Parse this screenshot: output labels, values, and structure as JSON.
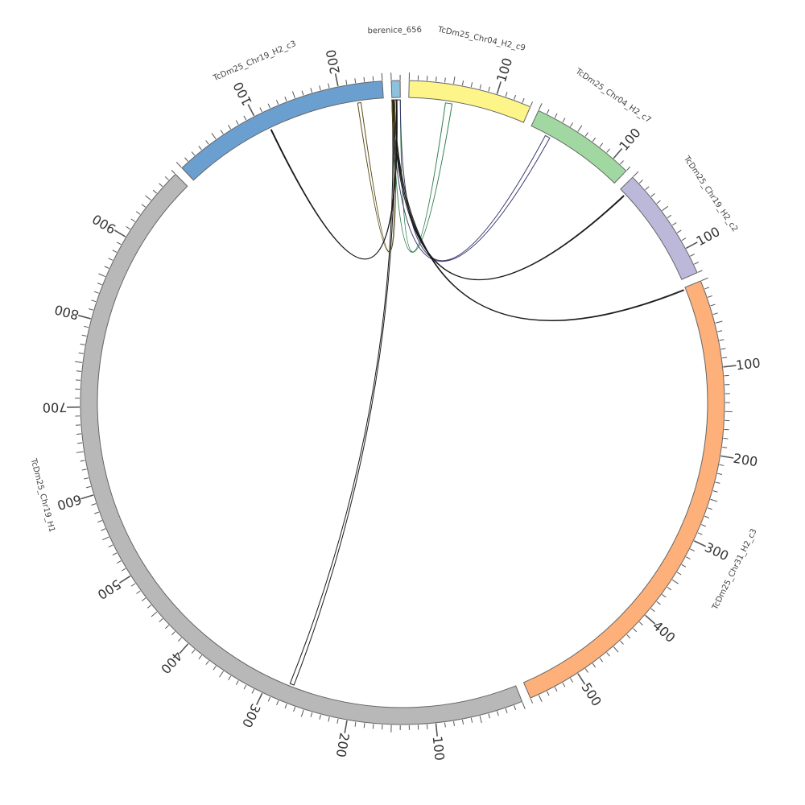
{
  "diagram": {
    "type": "circos",
    "segments": [
      {
        "id": "berenice_656",
        "label": "berenice_656",
        "length": 10,
        "color": "#8ec1de",
        "ticks": []
      },
      {
        "id": "TcDm25_Chr04_H2_c9",
        "label": "TcDm25_Chr04_H2_c9",
        "length": 140,
        "color": "#fef58a",
        "ticks": [
          100
        ]
      },
      {
        "id": "TcDm25_Chr04_H2_c7",
        "label": "TcDm25_Chr04_H2_c7",
        "length": 120,
        "color": "#a1d8a1",
        "ticks": [
          100
        ]
      },
      {
        "id": "TcDm25_Chr19_H2_c2",
        "label": "TcDm25_Chr19_H2_c2",
        "length": 130,
        "color": "#bcb8d9",
        "ticks": [
          100
        ]
      },
      {
        "id": "TcDm25_Chr31_H2_c3",
        "label": "TcDm25_Chr31_H2_c3",
        "length": 560,
        "color": "#fdb07a",
        "ticks": [
          100,
          200,
          300,
          400,
          500
        ]
      },
      {
        "id": "TcDm25_Chr19_H1",
        "label": "TcDm25_Chr19_H1",
        "length": 990,
        "color": "#b8b8b8",
        "ticks": [
          100,
          200,
          300,
          400,
          500,
          600,
          700,
          800,
          900
        ]
      },
      {
        "id": "TcDm25_Chr19_H2_c3",
        "label": "TcDm25_Chr19_H2_c3",
        "length": 250,
        "color": "#6a9fd0",
        "ticks": [
          100,
          200
        ]
      }
    ],
    "links": [
      {
        "from": "berenice_656",
        "from_pos": [
          0,
          10
        ],
        "to": "TcDm25_Chr04_H2_c9",
        "to_pos": [
          44,
          52
        ],
        "color": "#2e7d4f",
        "fill": "#3a8f5a"
      },
      {
        "from": "berenice_656",
        "from_pos": [
          0,
          10
        ],
        "to": "TcDm25_Chr04_H2_c7",
        "to_pos": [
          20,
          26
        ],
        "color": "#3b3b6e",
        "fill": "#6f6fa0"
      },
      {
        "from": "berenice_656",
        "from_pos": [
          1,
          3
        ],
        "to": "TcDm25_Chr19_H2_c2",
        "to_pos": [
          8,
          9
        ],
        "color": "#1a1a1a",
        "fill": "none"
      },
      {
        "from": "berenice_656",
        "from_pos": [
          1,
          3
        ],
        "to": "TcDm25_Chr31_H2_c3",
        "to_pos": [
          2,
          3
        ],
        "color": "#1a1a1a",
        "fill": "none"
      },
      {
        "from": "berenice_656",
        "from_pos": [
          0,
          2
        ],
        "to": "TcDm25_Chr19_H1",
        "to_pos": [
          270,
          275
        ],
        "color": "#1a1a1a",
        "fill": "#a0522d"
      },
      {
        "from": "berenice_656",
        "from_pos": [
          0,
          3
        ],
        "to": "TcDm25_Chr19_H2_c3",
        "to_pos": [
          219,
          223
        ],
        "color": "#5a4a1a",
        "fill": "#c97a3a"
      },
      {
        "from": "TcDm25_Chr19_H2_c3",
        "from_pos": [
          110,
          111
        ],
        "to": "berenice_656",
        "to_pos": [
          5,
          6
        ],
        "color": "#1a1a1a",
        "fill": "none"
      }
    ]
  }
}
